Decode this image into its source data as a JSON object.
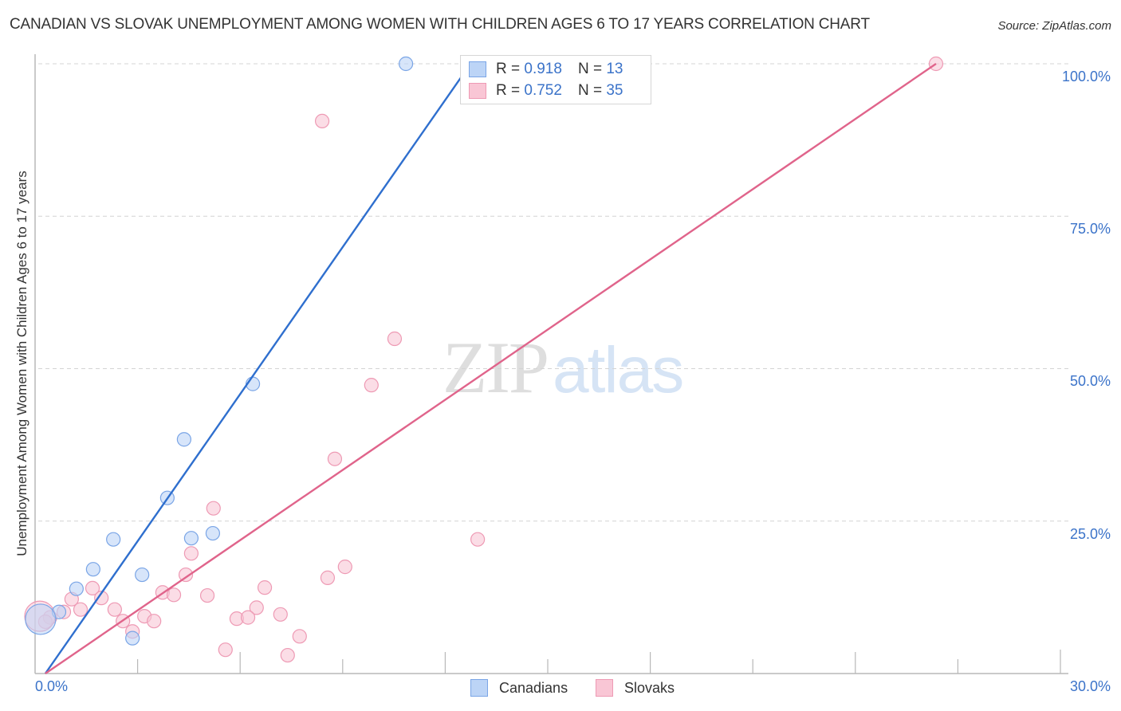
{
  "header": {
    "title": "CANADIAN VS SLOVAK UNEMPLOYMENT AMONG WOMEN WITH CHILDREN AGES 6 TO 17 YEARS CORRELATION CHART",
    "source": "Source: ZipAtlas.com"
  },
  "watermark": {
    "zip": "ZIP",
    "atlas": "atlas"
  },
  "axes": {
    "y_label": "Unemployment Among Women with Children Ages 6 to 17 years",
    "y_ticks": [
      "100.0%",
      "75.0%",
      "50.0%",
      "25.0%"
    ],
    "x_min_label": "0.0%",
    "x_max_label": "30.0%"
  },
  "legend": {
    "rows": [
      {
        "r_label": "R =",
        "r_value": "0.918",
        "n_label": "N =",
        "n_value": "13"
      },
      {
        "r_label": "R =",
        "r_value": "0.752",
        "n_label": "N =",
        "n_value": "35"
      }
    ],
    "bottom": [
      {
        "label": "Canadians"
      },
      {
        "label": "Slovaks"
      }
    ]
  },
  "colors": {
    "canadians_fill": "#bcd4f6",
    "canadians_stroke": "#7aa5e6",
    "canadians_line": "#2f6fce",
    "slovaks_fill": "#f9c6d5",
    "slovaks_stroke": "#ee9ab4",
    "slovaks_line": "#e0648b",
    "tick_label": "#3b73c9"
  },
  "chart_data": {
    "type": "scatter",
    "title": "CANADIAN VS SLOVAK UNEMPLOYMENT AMONG WOMEN WITH CHILDREN AGES 6 TO 17 YEARS CORRELATION CHART",
    "xlabel": "",
    "ylabel": "Unemployment Among Women with Children Ages 6 to 17 years",
    "xlim": [
      0,
      30
    ],
    "ylim": [
      0,
      100
    ],
    "x_tick_labels": [
      "0.0%",
      "30.0%"
    ],
    "y_tick_labels": [
      "25.0%",
      "50.0%",
      "75.0%",
      "100.0%"
    ],
    "grid": "horizontal dashed",
    "legend_position": "top-center and bottom",
    "series": [
      {
        "name": "Canadians",
        "R": 0.918,
        "N": 13,
        "trend": {
          "x0": 0.3,
          "y0": 0,
          "x1": 12.74,
          "y1": 100
        },
        "points": [
          {
            "x": 10.85,
            "y": 100.0
          },
          {
            "x": 6.37,
            "y": 47.5
          },
          {
            "x": 4.36,
            "y": 38.4
          },
          {
            "x": 3.87,
            "y": 28.8
          },
          {
            "x": 5.2,
            "y": 23.0
          },
          {
            "x": 4.57,
            "y": 22.2
          },
          {
            "x": 2.29,
            "y": 22.0
          },
          {
            "x": 3.13,
            "y": 16.2
          },
          {
            "x": 1.7,
            "y": 17.1
          },
          {
            "x": 1.21,
            "y": 13.9
          },
          {
            "x": 0.7,
            "y": 10.1
          },
          {
            "x": 0.16,
            "y": 8.9,
            "large": true
          },
          {
            "x": 2.85,
            "y": 5.8
          }
        ]
      },
      {
        "name": "Slovaks",
        "R": 0.752,
        "N": 35,
        "trend": {
          "x0": 0.3,
          "y0": 0,
          "x1": 26.36,
          "y1": 100
        },
        "points": [
          {
            "x": 26.36,
            "y": 100.0
          },
          {
            "x": 8.4,
            "y": 90.6
          },
          {
            "x": 10.52,
            "y": 54.9
          },
          {
            "x": 9.84,
            "y": 47.3
          },
          {
            "x": 8.77,
            "y": 35.2
          },
          {
            "x": 5.22,
            "y": 27.1
          },
          {
            "x": 12.95,
            "y": 22.0
          },
          {
            "x": 4.57,
            "y": 19.7
          },
          {
            "x": 9.07,
            "y": 17.5
          },
          {
            "x": 8.56,
            "y": 15.7
          },
          {
            "x": 4.41,
            "y": 16.2
          },
          {
            "x": 1.68,
            "y": 14.0
          },
          {
            "x": 6.72,
            "y": 14.1
          },
          {
            "x": 3.73,
            "y": 13.3
          },
          {
            "x": 4.06,
            "y": 12.9
          },
          {
            "x": 5.04,
            "y": 12.8
          },
          {
            "x": 1.94,
            "y": 12.4
          },
          {
            "x": 1.07,
            "y": 12.2
          },
          {
            "x": 6.48,
            "y": 10.8
          },
          {
            "x": 2.33,
            "y": 10.5
          },
          {
            "x": 1.33,
            "y": 10.5
          },
          {
            "x": 7.18,
            "y": 9.7
          },
          {
            "x": 3.2,
            "y": 9.4
          },
          {
            "x": 5.9,
            "y": 9.0
          },
          {
            "x": 6.23,
            "y": 9.2
          },
          {
            "x": 2.57,
            "y": 8.6
          },
          {
            "x": 3.48,
            "y": 8.6
          },
          {
            "x": 0.44,
            "y": 9.2
          },
          {
            "x": 2.85,
            "y": 6.9
          },
          {
            "x": 7.74,
            "y": 6.1
          },
          {
            "x": 5.57,
            "y": 3.9
          },
          {
            "x": 7.39,
            "y": 3.0
          },
          {
            "x": 0.3,
            "y": 8.5
          },
          {
            "x": 0.14,
            "y": 9.4,
            "large": true
          },
          {
            "x": 0.84,
            "y": 10.1
          }
        ]
      }
    ]
  }
}
